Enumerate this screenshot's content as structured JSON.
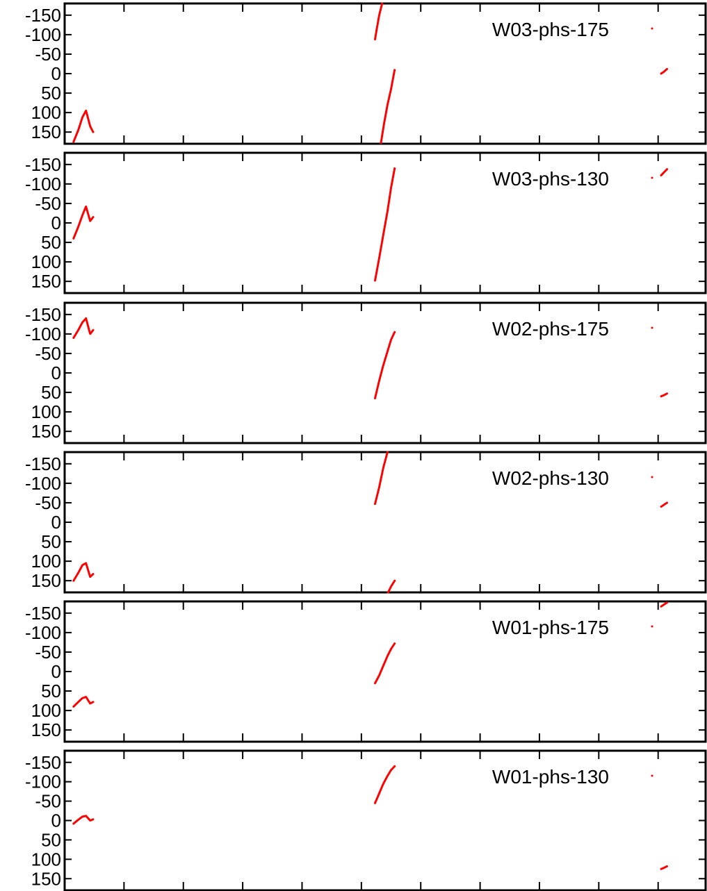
{
  "chart_data": [
    {
      "type": "scatter",
      "legend": "W03-phs-175",
      "legend_position": "top-right",
      "ylim": [
        -180,
        180
      ],
      "y_reversed": true,
      "yticks": [
        -150,
        -100,
        -50,
        0,
        50,
        100,
        150
      ],
      "ytick_labels": [
        "-150",
        "-100",
        "-50",
        "0",
        "50",
        "100",
        "150"
      ],
      "xlim": [
        0,
        10.8
      ],
      "xticks": [
        1,
        2,
        3,
        4,
        5,
        6,
        7,
        8,
        9,
        10
      ],
      "color": "#ff0000",
      "segments": [
        {
          "x": [
            0.15,
            0.23,
            0.3,
            0.36,
            0.43,
            0.48
          ],
          "y": [
            175,
            145,
            112,
            95,
            135,
            150
          ]
        },
        {
          "x": [
            5.23,
            5.26,
            5.3,
            5.35
          ],
          "y": [
            -88,
            -115,
            -150,
            -180
          ]
        },
        {
          "x": [
            5.33,
            5.38,
            5.44,
            5.5,
            5.56
          ],
          "y": [
            178,
            130,
            80,
            40,
            -10
          ]
        },
        {
          "x": [
            10.05,
            10.1,
            10.15
          ],
          "y": [
            0,
            -5,
            -12
          ]
        }
      ]
    },
    {
      "type": "scatter",
      "legend": "W03-phs-130",
      "legend_position": "top-right",
      "ylim": [
        -180,
        180
      ],
      "y_reversed": true,
      "yticks": [
        -150,
        -100,
        -50,
        0,
        50,
        100,
        150
      ],
      "ytick_labels": [
        "-150",
        "-100",
        "-50",
        "0",
        "50",
        "100",
        "150"
      ],
      "xlim": [
        0,
        10.8
      ],
      "xticks": [
        1,
        2,
        3,
        4,
        5,
        6,
        7,
        8,
        9,
        10
      ],
      "color": "#ff0000",
      "segments": [
        {
          "x": [
            0.15,
            0.23,
            0.3,
            0.36,
            0.43,
            0.48
          ],
          "y": [
            40,
            10,
            -20,
            -42,
            -5,
            -15
          ]
        },
        {
          "x": [
            5.23,
            5.3,
            5.37,
            5.44,
            5.5,
            5.56
          ],
          "y": [
            148,
            90,
            30,
            -30,
            -90,
            -140
          ]
        },
        {
          "x": [
            10.05,
            10.1,
            10.15
          ],
          "y": [
            -122,
            -130,
            -138
          ]
        }
      ]
    },
    {
      "type": "scatter",
      "legend": "W02-phs-175",
      "legend_position": "top-right",
      "ylim": [
        -180,
        180
      ],
      "y_reversed": true,
      "yticks": [
        -150,
        -100,
        -50,
        0,
        50,
        100,
        150
      ],
      "ytick_labels": [
        "-150",
        "-100",
        "-50",
        "0",
        "50",
        "100",
        "150"
      ],
      "xlim": [
        0,
        10.8
      ],
      "xticks": [
        1,
        2,
        3,
        4,
        5,
        6,
        7,
        8,
        9,
        10
      ],
      "color": "#ff0000",
      "segments": [
        {
          "x": [
            0.15,
            0.23,
            0.3,
            0.36,
            0.43,
            0.48
          ],
          "y": [
            -90,
            -110,
            -130,
            -140,
            -100,
            -110
          ]
        },
        {
          "x": [
            5.23,
            5.3,
            5.37,
            5.44,
            5.5,
            5.56
          ],
          "y": [
            65,
            20,
            -20,
            -55,
            -85,
            -105
          ]
        },
        {
          "x": [
            10.05,
            10.1,
            10.15
          ],
          "y": [
            60,
            57,
            53
          ]
        }
      ]
    },
    {
      "type": "scatter",
      "legend": "W02-phs-130",
      "legend_position": "top-right",
      "ylim": [
        -180,
        180
      ],
      "y_reversed": true,
      "yticks": [
        -150,
        -100,
        -50,
        0,
        50,
        100,
        150
      ],
      "ytick_labels": [
        "-150",
        "-100",
        "-50",
        "0",
        "50",
        "100",
        "150"
      ],
      "xlim": [
        0,
        10.8
      ],
      "xticks": [
        1,
        2,
        3,
        4,
        5,
        6,
        7,
        8,
        9,
        10
      ],
      "color": "#ff0000",
      "segments": [
        {
          "x": [
            0.15,
            0.23,
            0.3,
            0.36,
            0.43,
            0.48
          ],
          "y": [
            150,
            130,
            110,
            105,
            140,
            133
          ]
        },
        {
          "x": [
            5.23,
            5.3,
            5.37,
            5.44
          ],
          "y": [
            -47,
            -90,
            -140,
            -180
          ]
        },
        {
          "x": [
            5.45,
            5.5,
            5.56
          ],
          "y": [
            180,
            165,
            150
          ]
        },
        {
          "x": [
            10.05,
            10.1,
            10.15
          ],
          "y": [
            -40,
            -45,
            -50
          ]
        }
      ]
    },
    {
      "type": "scatter",
      "legend": "W01-phs-175",
      "legend_position": "top-right",
      "ylim": [
        -180,
        180
      ],
      "y_reversed": true,
      "yticks": [
        -150,
        -100,
        -50,
        0,
        50,
        100,
        150
      ],
      "ytick_labels": [
        "-150",
        "-100",
        "-50",
        "0",
        "50",
        "100",
        "150"
      ],
      "xlim": [
        0,
        10.8
      ],
      "xticks": [
        1,
        2,
        3,
        4,
        5,
        6,
        7,
        8,
        9,
        10
      ],
      "color": "#ff0000",
      "segments": [
        {
          "x": [
            0.15,
            0.23,
            0.3,
            0.36,
            0.43,
            0.48
          ],
          "y": [
            90,
            78,
            68,
            65,
            82,
            78
          ]
        },
        {
          "x": [
            5.23,
            5.3,
            5.37,
            5.44,
            5.5,
            5.56
          ],
          "y": [
            30,
            10,
            -15,
            -40,
            -58,
            -72
          ]
        },
        {
          "x": [
            10.05,
            10.1,
            10.15
          ],
          "y": [
            -167,
            -172,
            -177
          ]
        }
      ]
    },
    {
      "type": "scatter",
      "legend": "W01-phs-130",
      "legend_position": "top-right",
      "ylim": [
        -180,
        180
      ],
      "y_reversed": true,
      "yticks": [
        -150,
        -100,
        -50,
        0,
        50,
        100,
        150
      ],
      "ytick_labels": [
        "-150",
        "-100",
        "-50",
        "0",
        "50",
        "100",
        "150"
      ],
      "xlim": [
        0,
        10.8
      ],
      "xticks": [
        1,
        2,
        3,
        4,
        5,
        6,
        7,
        8,
        9,
        10
      ],
      "color": "#ff0000",
      "segments": [
        {
          "x": [
            0.15,
            0.23,
            0.3,
            0.36,
            0.43,
            0.48
          ],
          "y": [
            8,
            -2,
            -10,
            -12,
            0,
            -3
          ]
        },
        {
          "x": [
            5.23,
            5.3,
            5.37,
            5.44,
            5.5,
            5.56
          ],
          "y": [
            -45,
            -70,
            -95,
            -115,
            -130,
            -140
          ]
        },
        {
          "x": [
            10.05,
            10.1,
            10.15
          ],
          "y": [
            125,
            122,
            118
          ]
        }
      ]
    }
  ]
}
